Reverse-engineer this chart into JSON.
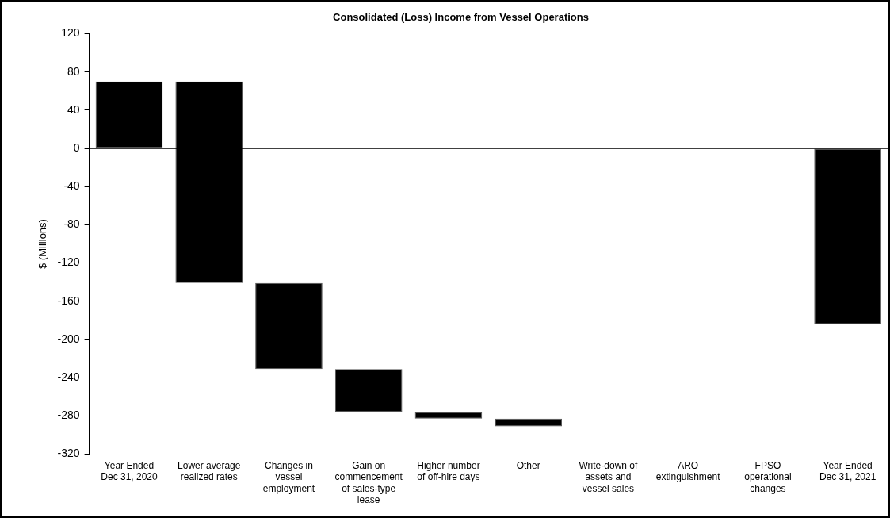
{
  "chart_data": {
    "type": "bar",
    "title": "Consolidated (Loss) Income from Vessel Operations",
    "ylabel": "$ (Millions)",
    "categories": [
      "Year Ended Dec 31, 2020",
      "Lower average realized rates",
      "Changes in vessel employment",
      "Gain on commencement of sales-type lease",
      "Higher number of off-hire days",
      "Other",
      "Write-down of assets and vessel sales",
      "ARO extinguishment",
      "FPSO operational changes",
      "Year Ended Dec 31, 2021"
    ],
    "values": [
      70,
      -211,
      -90,
      -45,
      -7,
      -8,
      null,
      null,
      null,
      -184
    ],
    "base": [
      0,
      70,
      -141,
      -231,
      -276,
      -283,
      null,
      null,
      null,
      0
    ],
    "color": "#000000",
    "ylim": [
      -320,
      120
    ],
    "yticks": [
      -320,
      -280,
      -240,
      -200,
      -160,
      -120,
      -80,
      -40,
      0,
      40,
      80,
      120
    ],
    "ref_lines": [
      {
        "axis": "y",
        "value": 0,
        "color": "#000000"
      }
    ],
    "grid": false,
    "legend": false
  }
}
